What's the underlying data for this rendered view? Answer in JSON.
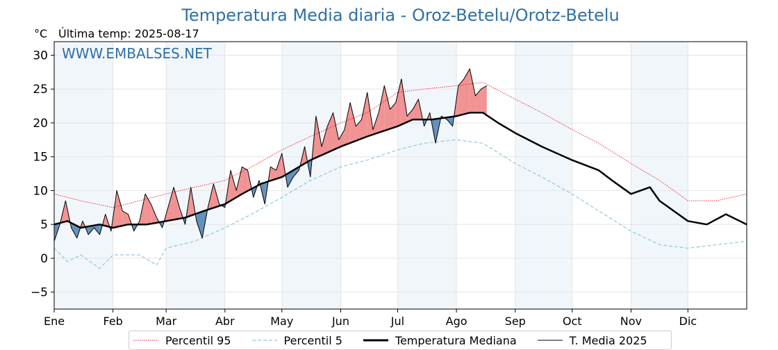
{
  "title": "Temperatura Media diaria - Oroz-Betelu/Orotz-Betelu",
  "unit_label": "°C",
  "last_temp_label": "Última temp: 2025-08-17",
  "watermark": "WWW.EMBALSES.NET",
  "colors": {
    "p95": "#e8202a",
    "p5": "#8fc7dc",
    "median": "#000000",
    "current": "#000000",
    "above_fill": "#f08080",
    "below_fill": "#4a7fb0",
    "month_band": "#e6eff7",
    "title": "#2f6fa6"
  },
  "chart_data": {
    "type": "line",
    "xlabel": "",
    "ylabel": "°C",
    "ylim": [
      -7.5,
      32
    ],
    "yticks": [
      -5,
      0,
      5,
      10,
      15,
      20,
      25,
      30
    ],
    "xlim_days": [
      1,
      366
    ],
    "months": [
      {
        "label": "Ene",
        "day": 1
      },
      {
        "label": "Feb",
        "day": 32
      },
      {
        "label": "Mar",
        "day": 60
      },
      {
        "label": "Abr",
        "day": 91
      },
      {
        "label": "May",
        "day": 121
      },
      {
        "label": "Jun",
        "day": 152
      },
      {
        "label": "Jul",
        "day": 182
      },
      {
        "label": "Ago",
        "day": 213
      },
      {
        "label": "Sep",
        "day": 244
      },
      {
        "label": "Oct",
        "day": 274
      },
      {
        "label": "Nov",
        "day": 305
      },
      {
        "label": "Dic",
        "day": 335
      }
    ],
    "grid": true,
    "legend_position": "bottom",
    "series": [
      {
        "name": "Percentil 95",
        "style": "dotted",
        "x": [
          1,
          15,
          32,
          46,
          60,
          75,
          91,
          105,
          121,
          136,
          152,
          166,
          182,
          196,
          213,
          227,
          244,
          258,
          274,
          288,
          305,
          320,
          335,
          350,
          366
        ],
        "values": [
          9.5,
          8.5,
          7.5,
          8.5,
          9.5,
          10.5,
          11.5,
          13.5,
          16.0,
          18.0,
          20.0,
          21.5,
          24.5,
          25.0,
          25.5,
          26.0,
          23.5,
          21.5,
          19.0,
          17.0,
          14.0,
          11.5,
          8.5,
          8.5,
          9.5
        ]
      },
      {
        "name": "Percentil 5",
        "style": "dashed",
        "x": [
          1,
          8,
          15,
          25,
          32,
          46,
          55,
          60,
          75,
          91,
          105,
          121,
          136,
          152,
          166,
          182,
          196,
          213,
          227,
          244,
          258,
          274,
          288,
          305,
          320,
          335,
          350,
          366
        ],
        "values": [
          1.5,
          -0.5,
          0.5,
          -1.5,
          0.5,
          0.5,
          -1.0,
          1.5,
          2.5,
          4.5,
          6.5,
          9.0,
          11.5,
          13.5,
          14.5,
          16.0,
          17.0,
          17.5,
          17.0,
          14.0,
          12.0,
          9.5,
          7.0,
          4.0,
          2.0,
          1.5,
          2.0,
          2.5
        ]
      },
      {
        "name": "Temperatura Mediana",
        "style": "solid-thick",
        "x": [
          1,
          8,
          15,
          25,
          32,
          40,
          50,
          60,
          70,
          80,
          91,
          100,
          110,
          121,
          136,
          152,
          166,
          182,
          190,
          200,
          213,
          220,
          227,
          235,
          244,
          258,
          274,
          288,
          295,
          305,
          315,
          320,
          335,
          345,
          355,
          366
        ],
        "values": [
          5.0,
          5.5,
          4.5,
          5.0,
          4.5,
          5.0,
          5.0,
          5.5,
          6.0,
          7.0,
          8.0,
          9.5,
          11.0,
          12.0,
          14.5,
          16.5,
          18.0,
          19.5,
          20.5,
          20.5,
          21.0,
          21.5,
          21.5,
          20.0,
          18.5,
          16.5,
          14.5,
          13.0,
          11.5,
          9.5,
          10.5,
          8.5,
          5.5,
          5.0,
          6.5,
          5.0
        ]
      },
      {
        "name": "T. Media 2025",
        "style": "solid-thin",
        "x": [
          1,
          4,
          7,
          10,
          13,
          16,
          19,
          22,
          25,
          28,
          31,
          34,
          37,
          40,
          43,
          46,
          49,
          52,
          55,
          58,
          61,
          64,
          67,
          70,
          73,
          76,
          79,
          82,
          85,
          88,
          91,
          94,
          97,
          100,
          103,
          106,
          109,
          112,
          115,
          118,
          121,
          124,
          127,
          130,
          133,
          136,
          139,
          142,
          145,
          148,
          151,
          154,
          157,
          160,
          163,
          166,
          169,
          172,
          175,
          178,
          181,
          184,
          187,
          190,
          193,
          196,
          199,
          202,
          205,
          208,
          211,
          214,
          217,
          220,
          223,
          226,
          229
        ],
        "values": [
          2.5,
          5.0,
          8.5,
          4.5,
          3.0,
          5.5,
          3.5,
          4.5,
          3.5,
          6.5,
          4.0,
          10.0,
          7.0,
          6.5,
          4.0,
          5.5,
          9.5,
          8.0,
          6.0,
          4.5,
          7.5,
          10.5,
          7.5,
          5.0,
          10.5,
          5.5,
          3.0,
          7.5,
          11.0,
          8.0,
          7.5,
          13.0,
          10.0,
          13.5,
          13.0,
          9.0,
          11.5,
          8.0,
          13.5,
          13.0,
          15.5,
          10.5,
          12.0,
          13.0,
          16.5,
          12.0,
          21.0,
          16.5,
          19.5,
          21.5,
          17.5,
          19.0,
          23.0,
          19.5,
          20.5,
          24.5,
          19.0,
          21.5,
          25.5,
          22.0,
          23.0,
          26.5,
          21.0,
          22.0,
          23.5,
          19.5,
          21.5,
          17.0,
          21.0,
          20.5,
          19.5,
          25.5,
          26.5,
          28.0,
          24.0,
          25.0,
          25.5
        ]
      }
    ]
  },
  "legend": {
    "p95": "Percentil 95",
    "p5": "Percentil 5",
    "median": "Temperatura Mediana",
    "current": "T. Media 2025"
  }
}
